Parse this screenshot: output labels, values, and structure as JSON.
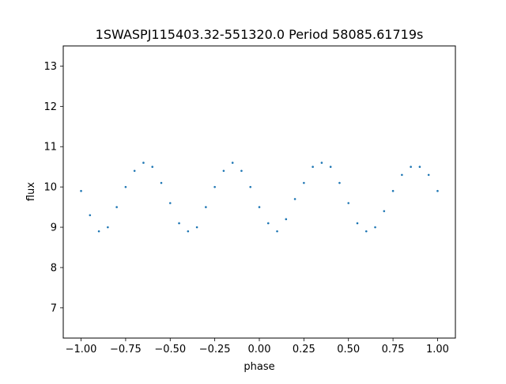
{
  "chart_data": {
    "type": "scatter",
    "title": "1SWASPJ115403.32-551320.0 Period 58085.61719s",
    "xlabel": "phase",
    "ylabel": "flux",
    "xlim": [
      -1.1,
      1.1
    ],
    "ylim": [
      6.25,
      13.5
    ],
    "xticks": [
      {
        "value": -1.0,
        "label": "−1.00"
      },
      {
        "value": -0.75,
        "label": "−0.75"
      },
      {
        "value": -0.5,
        "label": "−0.50"
      },
      {
        "value": -0.25,
        "label": "−0.25"
      },
      {
        "value": 0.0,
        "label": "0.00"
      },
      {
        "value": 0.25,
        "label": "0.25"
      },
      {
        "value": 0.5,
        "label": "0.50"
      },
      {
        "value": 0.75,
        "label": "0.75"
      },
      {
        "value": 1.0,
        "label": "1.00"
      }
    ],
    "yticks": [
      {
        "value": 7,
        "label": "7"
      },
      {
        "value": 8,
        "label": "8"
      },
      {
        "value": 9,
        "label": "9"
      },
      {
        "value": 10,
        "label": "10"
      },
      {
        "value": 11,
        "label": "11"
      },
      {
        "value": 12,
        "label": "12"
      },
      {
        "value": 13,
        "label": "13"
      }
    ],
    "grid": false,
    "marker_color": "#1f77b4",
    "series": [
      {
        "x": [
          -1.0,
          -0.95,
          -0.9,
          -0.85,
          -0.8,
          -0.75,
          -0.7,
          -0.65,
          -0.6,
          -0.55,
          -0.5,
          -0.45,
          -0.4,
          -0.35,
          -0.3,
          -0.25,
          -0.2,
          -0.15,
          -0.1,
          -0.05,
          0.0,
          0.05,
          0.1,
          0.15,
          0.2,
          0.25,
          0.3,
          0.35,
          0.4,
          0.45,
          0.5,
          0.55,
          0.6,
          0.65,
          0.7,
          0.75,
          0.8,
          0.85,
          0.9,
          0.95,
          1.0
        ],
        "y": [
          9.9,
          9.3,
          8.9,
          9.0,
          9.5,
          10.0,
          10.4,
          10.6,
          10.5,
          10.1,
          9.6,
          9.1,
          8.9,
          9.0,
          9.5,
          10.0,
          10.4,
          10.6,
          10.4,
          10.0,
          9.5,
          9.1,
          8.9,
          9.2,
          9.7,
          10.1,
          10.5,
          10.6,
          10.5,
          10.1,
          9.6,
          9.1,
          8.9,
          9.0,
          9.4,
          9.9,
          10.3,
          10.5,
          10.5,
          10.3,
          9.9
        ]
      }
    ]
  }
}
